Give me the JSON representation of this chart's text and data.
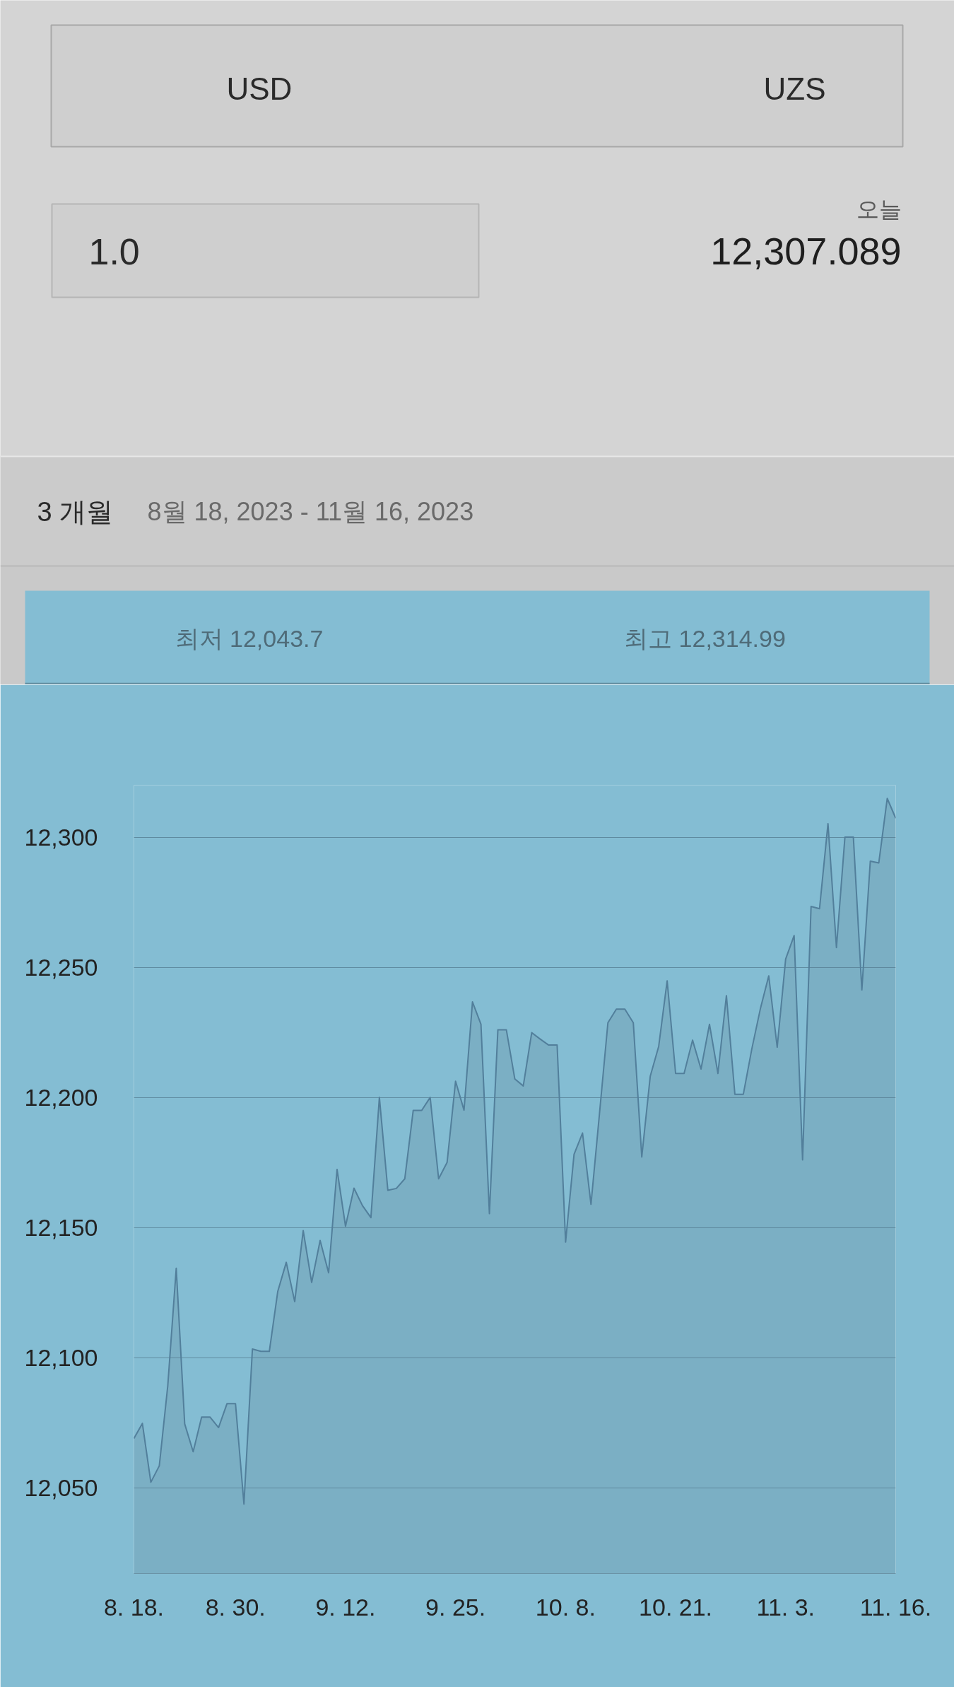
{
  "chart_data": {
    "type": "area",
    "annotations": [
      "USD",
      "UZS",
      "1.0",
      "오늘",
      "12,307.089",
      "3 개월",
      "8월 18, 2023 - 11월 16, 2023",
      "최저 12,043.7",
      "최고 12,314.99"
    ],
    "x": [
      "2023-08-18",
      "2023-08-19",
      "2023-08-20",
      "2023-08-21",
      "2023-08-22",
      "2023-08-23",
      "2023-08-24",
      "2023-08-25",
      "2023-08-26",
      "2023-08-27",
      "2023-08-28",
      "2023-08-29",
      "2023-08-30",
      "2023-08-31",
      "2023-09-01",
      "2023-09-02",
      "2023-09-03",
      "2023-09-04",
      "2023-09-05",
      "2023-09-06",
      "2023-09-07",
      "2023-09-08",
      "2023-09-09",
      "2023-09-10",
      "2023-09-11",
      "2023-09-12",
      "2023-09-13",
      "2023-09-14",
      "2023-09-15",
      "2023-09-16",
      "2023-09-17",
      "2023-09-18",
      "2023-09-19",
      "2023-09-20",
      "2023-09-21",
      "2023-09-22",
      "2023-09-23",
      "2023-09-24",
      "2023-09-25",
      "2023-09-26",
      "2023-09-27",
      "2023-09-28",
      "2023-09-29",
      "2023-09-30",
      "2023-10-01",
      "2023-10-02",
      "2023-10-03",
      "2023-10-04",
      "2023-10-05",
      "2023-10-06",
      "2023-10-07",
      "2023-10-08",
      "2023-10-09",
      "2023-10-10",
      "2023-10-11",
      "2023-10-12",
      "2023-10-13",
      "2023-10-14",
      "2023-10-15",
      "2023-10-16",
      "2023-10-17",
      "2023-10-18",
      "2023-10-19",
      "2023-10-20",
      "2023-10-21",
      "2023-10-22",
      "2023-10-23",
      "2023-10-24",
      "2023-10-25",
      "2023-10-26",
      "2023-10-27",
      "2023-10-28",
      "2023-10-29",
      "2023-10-30",
      "2023-10-31",
      "2023-11-01",
      "2023-11-02",
      "2023-11-03",
      "2023-11-04",
      "2023-11-05",
      "2023-11-06",
      "2023-11-07",
      "2023-11-08",
      "2023-11-09",
      "2023-11-10",
      "2023-11-11",
      "2023-11-12",
      "2023-11-13",
      "2023-11-14",
      "2023-11-15",
      "2023-11-16"
    ],
    "series": [
      {
        "color": "#527f9b",
        "values": [
          12068.9,
          12074.7,
          12052.1,
          12058.4,
          12089.2,
          12134.3,
          12074.5,
          12063.8,
          12077.1,
          12077.1,
          12073.1,
          12082.3,
          12082.3,
          12043.7,
          12103.3,
          12102.4,
          12102.4,
          12125.5,
          12136.6,
          12121.5,
          12148.8,
          12128.9,
          12145.0,
          12132.6,
          12172.3,
          12150.5,
          12165.1,
          12158.4,
          12153.8,
          12200.0,
          12164.3,
          12165.0,
          12168.7,
          12195.0,
          12195.0,
          12200.0,
          12168.7,
          12175.0,
          12206.2,
          12195.1,
          12236.7,
          12228.1,
          12155.3,
          12226.0,
          12226.0,
          12207.1,
          12204.4,
          12224.9,
          12222.4,
          12220.1,
          12220.1,
          12144.4,
          12178.1,
          12186.3,
          12158.9,
          12193.6,
          12228.7,
          12233.9,
          12233.9,
          12228.7,
          12177.1,
          12208.1,
          12219.6,
          12244.8,
          12209.2,
          12209.2,
          12222.0,
          12210.9,
          12228.1,
          12209.2,
          12239.1,
          12201.2,
          12201.2,
          12218.6,
          12233.9,
          12246.7,
          12219.3,
          12253.2,
          12262.2,
          12176.0,
          12273.4,
          12272.5,
          12305.2,
          12257.6,
          12300.0,
          12300.0,
          12241.3,
          12290.8,
          12290.1,
          12314.9,
          12307.3
        ]
      }
    ],
    "xlim": [
      "2023-08-18",
      "2023-11-16"
    ],
    "xticks": [
      {
        "value": "2023-08-18",
        "label": "8. 18."
      },
      {
        "value": "2023-08-30",
        "label": "8. 30."
      },
      {
        "value": "2023-09-12",
        "label": "9. 12."
      },
      {
        "value": "2023-09-25",
        "label": "9. 25."
      },
      {
        "value": "2023-10-08",
        "label": "10. 8."
      },
      {
        "value": "2023-10-21",
        "label": "10. 21."
      },
      {
        "value": "2023-11-03",
        "label": "11. 3."
      },
      {
        "value": "2023-11-16",
        "label": "11. 16."
      }
    ],
    "ylim": [
      12017,
      12320
    ],
    "yticks": [
      {
        "value": 12050,
        "label": "12,050"
      },
      {
        "value": 12100,
        "label": "12,100"
      },
      {
        "value": 12150,
        "label": "12,150"
      },
      {
        "value": 12200,
        "label": "12,200"
      },
      {
        "value": 12250,
        "label": "12,250"
      },
      {
        "value": 12300,
        "label": "12,300"
      }
    ],
    "grid": "y"
  }
}
